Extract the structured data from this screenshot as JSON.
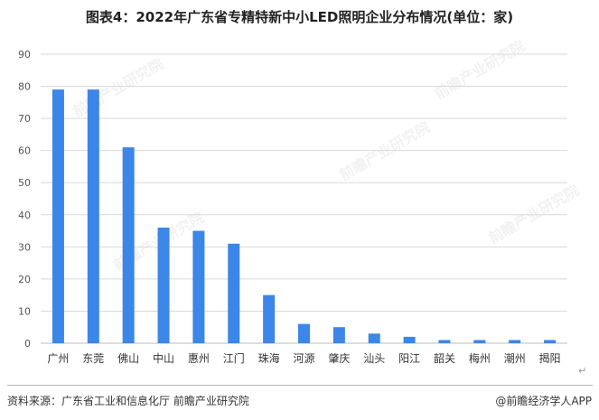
{
  "chart_data": {
    "type": "bar",
    "title": "图表4：2022年广东省专精特新中小LED照明企业分布情况(单位：家)",
    "categories": [
      "广州",
      "东莞",
      "佛山",
      "中山",
      "惠州",
      "江门",
      "珠海",
      "河源",
      "肇庆",
      "汕头",
      "阳江",
      "韶关",
      "梅州",
      "潮州",
      "揭阳"
    ],
    "values": [
      79,
      79,
      61,
      36,
      35,
      31,
      15,
      6,
      5,
      3,
      2,
      1,
      1,
      1,
      1
    ],
    "ylim": [
      0,
      90
    ],
    "yticks": [
      0,
      10,
      20,
      30,
      40,
      50,
      60,
      70,
      80,
      90
    ],
    "grid": true,
    "legend": "none",
    "bar_color": "#3b86e8",
    "xlabel": "",
    "ylabel": ""
  },
  "footer": {
    "source": "资料来源：广东省工业和信息化厅 前瞻产业研究院",
    "credit": "@前瞻经济学人APP"
  },
  "watermark": {
    "text": "前瞻产业研究院"
  },
  "return_glyph": "↵"
}
